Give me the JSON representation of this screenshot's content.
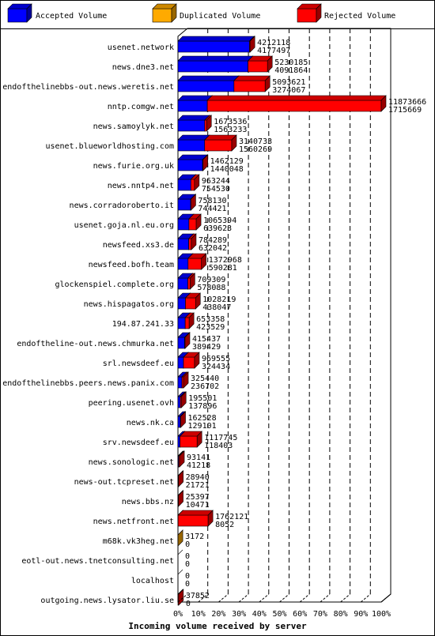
{
  "chart_data": {
    "type": "bar",
    "title": "",
    "xlabel": "Incoming volume received by server",
    "ylabel": "",
    "xlim": [
      0,
      100
    ],
    "x_ticks": [
      "0%",
      "10%",
      "20%",
      "30%",
      "40%",
      "50%",
      "60%",
      "70%",
      "80%",
      "90%",
      "100%"
    ],
    "legend_position": "top",
    "grid": true,
    "colors": {
      "accepted": "#0000ff",
      "duplicated": "#ffaa00",
      "rejected": "#ff0000"
    },
    "series": [
      {
        "name": "Accepted Volume",
        "key": "accepted"
      },
      {
        "name": "Duplicated Volume",
        "key": "duplicated"
      },
      {
        "name": "Rejected Volume",
        "key": "rejected"
      }
    ],
    "rows": [
      {
        "server": "usenet.network",
        "total": "4212118",
        "accepted": "4177497",
        "accepted_pct": 35.18,
        "duplicated_pct": 0,
        "rejected_pct": 0.29
      },
      {
        "server": "news.dne3.net",
        "total": "5230185",
        "accepted": "4091864",
        "accepted_pct": 34.46,
        "duplicated_pct": 0,
        "rejected_pct": 9.59
      },
      {
        "server": "endofthelinebbs-out.news.weretis.net",
        "total": "5093621",
        "accepted": "3274067",
        "accepted_pct": 27.57,
        "duplicated_pct": 0,
        "rejected_pct": 15.32
      },
      {
        "server": "nntp.comgw.net",
        "total": "11873666",
        "accepted": "1715669",
        "accepted_pct": 14.45,
        "duplicated_pct": 0,
        "rejected_pct": 85.55
      },
      {
        "server": "news.samoylyk.net",
        "total": "1673536",
        "accepted": "1563233",
        "accepted_pct": 13.17,
        "duplicated_pct": 0,
        "rejected_pct": 0.93
      },
      {
        "server": "usenet.blueworldhosting.com",
        "total": "3140733",
        "accepted": "1560269",
        "accepted_pct": 13.14,
        "duplicated_pct": 0,
        "rejected_pct": 13.31
      },
      {
        "server": "news.furie.org.uk",
        "total": "1462129",
        "accepted": "1440048",
        "accepted_pct": 12.13,
        "duplicated_pct": 0,
        "rejected_pct": 0.19
      },
      {
        "server": "news.nntp4.net",
        "total": "963244",
        "accepted": "754530",
        "accepted_pct": 6.35,
        "duplicated_pct": 0,
        "rejected_pct": 1.76
      },
      {
        "server": "news.corradoroberto.it",
        "total": "758130",
        "accepted": "744421",
        "accepted_pct": 6.27,
        "duplicated_pct": 0,
        "rejected_pct": 0.12
      },
      {
        "server": "usenet.goja.nl.eu.org",
        "total": "1065394",
        "accepted": "639623",
        "accepted_pct": 5.39,
        "duplicated_pct": 0,
        "rejected_pct": 3.59
      },
      {
        "server": "newsfeed.xs3.de",
        "total": "784289",
        "accepted": "632042",
        "accepted_pct": 5.32,
        "duplicated_pct": 0,
        "rejected_pct": 1.28
      },
      {
        "server": "newsfeed.bofh.team",
        "total": "1372968",
        "accepted": "590281",
        "accepted_pct": 4.97,
        "duplicated_pct": 0,
        "rejected_pct": 6.59
      },
      {
        "server": "glockenspiel.complete.org",
        "total": "709309",
        "accepted": "578088",
        "accepted_pct": 4.87,
        "duplicated_pct": 0,
        "rejected_pct": 1.1
      },
      {
        "server": "news.hispagatos.org",
        "total": "1028219",
        "accepted": "438047",
        "accepted_pct": 3.69,
        "duplicated_pct": 0,
        "rejected_pct": 4.97
      },
      {
        "server": "194.87.241.33",
        "total": "653358",
        "accepted": "423529",
        "accepted_pct": 3.57,
        "duplicated_pct": 0,
        "rejected_pct": 1.94
      },
      {
        "server": "endoftheline-out.news.chmurka.net",
        "total": "415437",
        "accepted": "389429",
        "accepted_pct": 3.28,
        "duplicated_pct": 0,
        "rejected_pct": 0.22
      },
      {
        "server": "srl.newsdeef.eu",
        "total": "969555",
        "accepted": "324434",
        "accepted_pct": 2.73,
        "duplicated_pct": 0,
        "rejected_pct": 5.43
      },
      {
        "server": "endofthelinebbs.peers.news.panix.com",
        "total": "325440",
        "accepted": "236702",
        "accepted_pct": 1.99,
        "duplicated_pct": 0,
        "rejected_pct": 0.75
      },
      {
        "server": "peering.usenet.ovh",
        "total": "195501",
        "accepted": "137896",
        "accepted_pct": 1.16,
        "duplicated_pct": 0,
        "rejected_pct": 0.49
      },
      {
        "server": "news.nk.ca",
        "total": "162528",
        "accepted": "129101",
        "accepted_pct": 1.09,
        "duplicated_pct": 0,
        "rejected_pct": 0.28
      },
      {
        "server": "srv.newsdeef.eu",
        "total": "1117745",
        "accepted": "118403",
        "accepted_pct": 1.0,
        "duplicated_pct": 0,
        "rejected_pct": 8.42
      },
      {
        "server": "news.sonologic.net",
        "total": "93141",
        "accepted": "41218",
        "accepted_pct": 0.35,
        "duplicated_pct": 0,
        "rejected_pct": 0.44
      },
      {
        "server": "news-out.tcpreset.net",
        "total": "28940",
        "accepted": "21721",
        "accepted_pct": 0.18,
        "duplicated_pct": 0,
        "rejected_pct": 0.06
      },
      {
        "server": "news.bbs.nz",
        "total": "25397",
        "accepted": "10471",
        "accepted_pct": 0.09,
        "duplicated_pct": 0,
        "rejected_pct": 0.13
      },
      {
        "server": "news.netfront.net",
        "total": "1762121",
        "accepted": "8052",
        "accepted_pct": 0.07,
        "duplicated_pct": 0,
        "rejected_pct": 14.77
      },
      {
        "server": "m68k.vk3heg.net",
        "total": "3172",
        "accepted": "0",
        "accepted_pct": 0,
        "duplicated_pct": 0.03,
        "rejected_pct": 0
      },
      {
        "server": "eotl-out.news.tnetconsulting.net",
        "total": "0",
        "accepted": "0",
        "accepted_pct": 0,
        "duplicated_pct": 0,
        "rejected_pct": 0
      },
      {
        "server": "localhost",
        "total": "0",
        "accepted": "0",
        "accepted_pct": 0,
        "duplicated_pct": 0,
        "rejected_pct": 0
      },
      {
        "server": "outgoing.news.lysator.liu.se",
        "total": "37852",
        "accepted": "0",
        "accepted_pct": 0,
        "duplicated_pct": 0,
        "rejected_pct": 0.32
      }
    ]
  }
}
